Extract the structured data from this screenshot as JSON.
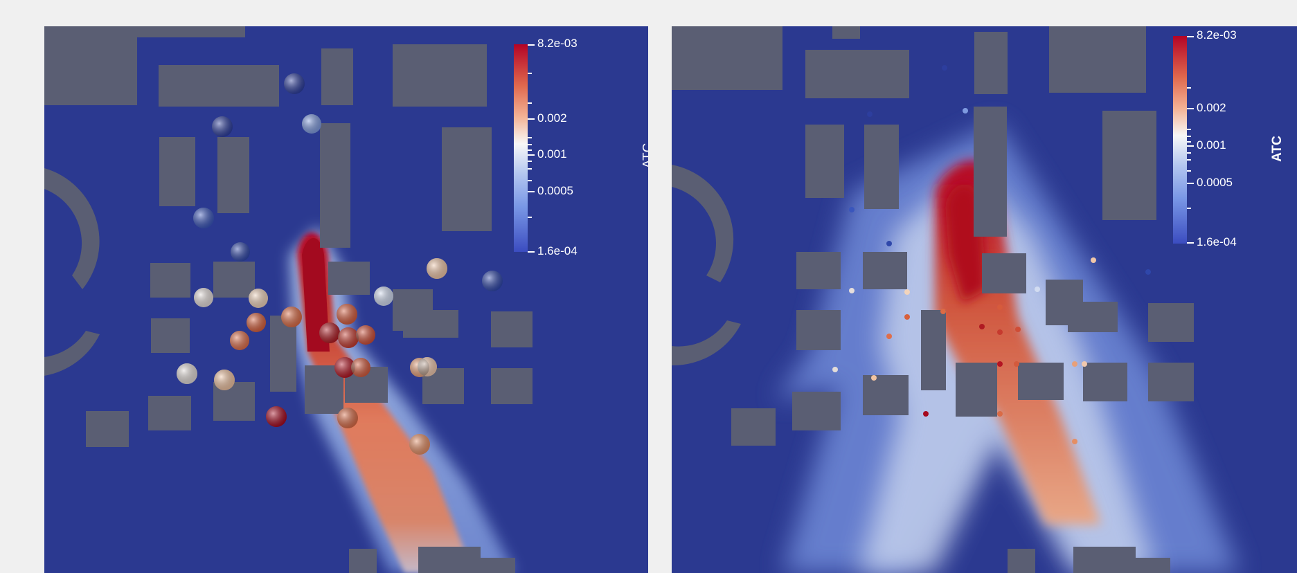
{
  "panels": [
    {
      "id": "left",
      "colorbar": {
        "title": "ATC",
        "max_label": "8.2e-03",
        "labels": [
          "0.002",
          "0.001",
          "0.0005"
        ],
        "min_label": "1.6e-04"
      }
    },
    {
      "id": "right",
      "colorbar": {
        "title": "ATC",
        "max_label": "8.2e-03",
        "labels": [
          "0.002",
          "0.001",
          "0.0005"
        ],
        "min_label": "1.6e-04"
      }
    }
  ],
  "colors": {
    "background": "#2b3990",
    "building": "#5a5e73",
    "high": "#b40426",
    "mid": "#f7f7f7",
    "low": "#3b4cc0"
  }
}
